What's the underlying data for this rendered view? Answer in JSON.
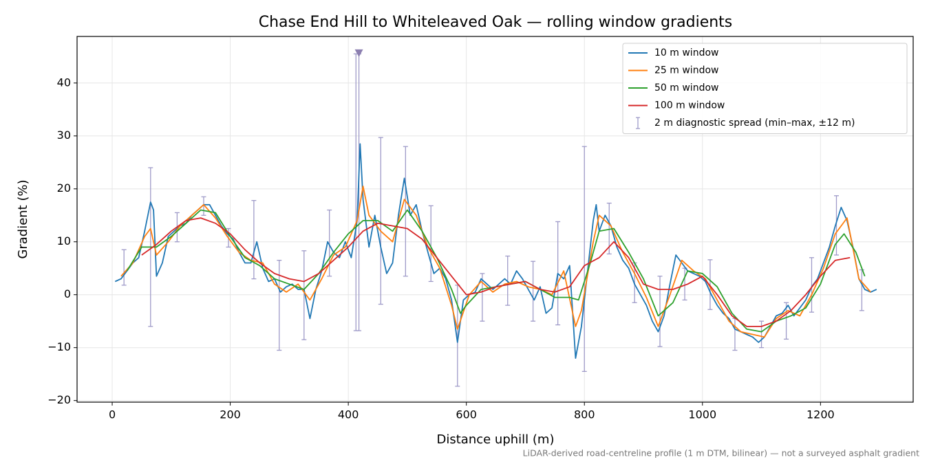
{
  "chart_data": {
    "type": "line",
    "title": "Chase End Hill to Whiteleaved Oak — rolling window gradients",
    "x_label": "Distance uphill (m)",
    "y_label": "Gradient (%)",
    "footnote": "LiDAR-derived road-centreline profile (1 m DTM, bilinear) — not a surveyed asphalt gradient",
    "xlim": [
      -59.5,
      1357
    ],
    "ylim": [
      -20.3,
      48.8
    ],
    "xticks": [
      0,
      200,
      400,
      600,
      800,
      1000,
      1200
    ],
    "yticks": [
      {
        "value": -20,
        "label": "−20"
      },
      {
        "value": -10,
        "label": "−10"
      },
      0,
      10,
      20,
      30,
      40
    ],
    "grid": true,
    "legend": "upper right",
    "series": [
      {
        "name": "10 m window",
        "color": "#1f77b4",
        "x": [
          5,
          15,
          25,
          35,
          45,
          55,
          65,
          70,
          75,
          85,
          95,
          105,
          115,
          125,
          135,
          145,
          155,
          165,
          175,
          185,
          195,
          205,
          215,
          225,
          235,
          245,
          255,
          265,
          275,
          285,
          295,
          305,
          315,
          325,
          335,
          345,
          355,
          365,
          375,
          385,
          395,
          405,
          415,
          420,
          425,
          435,
          445,
          455,
          465,
          475,
          485,
          495,
          505,
          515,
          525,
          535,
          545,
          555,
          565,
          575,
          585,
          595,
          605,
          615,
          625,
          635,
          645,
          655,
          665,
          675,
          685,
          695,
          705,
          715,
          725,
          735,
          745,
          755,
          765,
          775,
          785,
          795,
          805,
          815,
          820,
          825,
          835,
          845,
          855,
          865,
          875,
          885,
          895,
          905,
          915,
          925,
          935,
          945,
          955,
          965,
          975,
          985,
          995,
          1005,
          1015,
          1025,
          1035,
          1045,
          1055,
          1065,
          1075,
          1085,
          1095,
          1105,
          1115,
          1125,
          1135,
          1145,
          1155,
          1165,
          1175,
          1185,
          1195,
          1205,
          1215,
          1225,
          1235,
          1245,
          1255,
          1265,
          1275,
          1285,
          1295
        ],
        "values": [
          2.5,
          3,
          4.5,
          6,
          7,
          12,
          17.5,
          16,
          3.5,
          6,
          11,
          12,
          13,
          13.5,
          15,
          16,
          17,
          17,
          15,
          13,
          11.5,
          10.5,
          8,
          6,
          6,
          10,
          5,
          2.5,
          3,
          0.5,
          1.5,
          2,
          1,
          1,
          -4.5,
          1,
          4.5,
          10,
          8,
          7,
          10,
          7,
          14,
          28.5,
          18,
          9,
          15,
          9,
          4,
          6,
          15,
          22,
          15,
          17,
          12,
          8,
          4,
          5,
          3,
          -1,
          -9,
          -1,
          0,
          0.5,
          3,
          2,
          1,
          2,
          3,
          2,
          4.5,
          3,
          1,
          -1,
          1.5,
          -3.5,
          -2.5,
          4,
          3,
          5.5,
          -12,
          -6,
          4,
          14,
          17,
          12,
          15,
          13,
          9,
          6.5,
          5,
          2,
          0,
          -2,
          -5,
          -7,
          -4,
          2,
          7.5,
          6,
          4.5,
          4,
          3.5,
          2.5,
          0,
          -2,
          -3.5,
          -4.5,
          -6.5,
          -7,
          -7.5,
          -8,
          -9,
          -8,
          -6,
          -4,
          -3.5,
          -2,
          -4,
          -2.5,
          -1,
          1.5,
          3,
          6,
          9,
          13,
          16.5,
          14,
          9,
          3,
          1,
          0.5,
          1
        ]
      },
      {
        "name": "25 m window",
        "color": "#ff7f0e",
        "x": [
          15,
          35,
          55,
          65,
          75,
          95,
          115,
          135,
          155,
          175,
          195,
          215,
          235,
          255,
          275,
          295,
          315,
          335,
          355,
          375,
          395,
          415,
          425,
          435,
          455,
          475,
          495,
          515,
          535,
          555,
          575,
          585,
          605,
          625,
          645,
          665,
          685,
          705,
          725,
          745,
          765,
          785,
          795,
          815,
          825,
          845,
          865,
          885,
          905,
          925,
          945,
          965,
          985,
          1005,
          1025,
          1045,
          1065,
          1085,
          1105,
          1125,
          1145,
          1165,
          1185,
          1205,
          1225,
          1245,
          1265,
          1285
        ],
        "values": [
          3.5,
          6,
          11,
          12.5,
          7.5,
          10,
          13,
          15,
          17,
          14.5,
          11,
          8,
          6.5,
          6,
          2,
          0.5,
          2,
          -1,
          3,
          7.5,
          9,
          14,
          20.5,
          15,
          12,
          10,
          18,
          15,
          9,
          5,
          -2,
          -6.5,
          0,
          2.5,
          0.5,
          2,
          2.5,
          1.5,
          1,
          0,
          4.5,
          -6,
          -3,
          10,
          15,
          13,
          8,
          4,
          -0.5,
          -6,
          0,
          6.5,
          4.5,
          3,
          -1,
          -5,
          -7,
          -7.5,
          -8,
          -4.5,
          -3,
          -4,
          0,
          5,
          11.5,
          14.5,
          3,
          0.5
        ]
      },
      {
        "name": "50 m window",
        "color": "#2ca02c",
        "x": [
          25,
          50,
          75,
          100,
          125,
          150,
          175,
          200,
          225,
          250,
          275,
          300,
          325,
          350,
          375,
          400,
          425,
          450,
          475,
          500,
          525,
          550,
          575,
          590,
          600,
          625,
          650,
          675,
          700,
          725,
          750,
          775,
          790,
          810,
          825,
          850,
          875,
          900,
          925,
          950,
          975,
          1000,
          1025,
          1050,
          1075,
          1100,
          1125,
          1150,
          1175,
          1200,
          1225,
          1240,
          1260,
          1275
        ],
        "values": [
          4.5,
          9,
          9,
          11,
          13.5,
          16,
          15.5,
          11,
          7,
          5.5,
          3,
          2,
          1,
          4,
          8,
          11.5,
          14,
          14,
          12,
          16,
          12,
          7,
          1,
          -3.5,
          -2,
          1,
          1.5,
          2,
          2.5,
          1,
          -0.5,
          -0.5,
          -1,
          6,
          12,
          12.5,
          8,
          3,
          -4,
          -1.5,
          4.5,
          4,
          1.5,
          -3.5,
          -6.5,
          -7,
          -5,
          -4,
          -2.5,
          2,
          9.5,
          11.5,
          8,
          3.5
        ]
      },
      {
        "name": "100 m window",
        "color": "#d62728",
        "x": [
          50,
          75,
          100,
          125,
          150,
          175,
          200,
          225,
          250,
          275,
          300,
          325,
          350,
          375,
          400,
          425,
          450,
          475,
          500,
          525,
          550,
          575,
          600,
          625,
          650,
          675,
          700,
          725,
          750,
          775,
          800,
          825,
          850,
          875,
          900,
          925,
          950,
          975,
          1000,
          1025,
          1050,
          1075,
          1100,
          1125,
          1150,
          1175,
          1200,
          1225,
          1250
        ],
        "values": [
          7.5,
          9.5,
          12,
          14,
          14.5,
          13.5,
          11.5,
          8.5,
          6,
          4,
          3,
          2.5,
          4,
          6.5,
          9,
          12,
          13.5,
          13,
          12.5,
          10.5,
          7,
          3.5,
          0,
          0.5,
          1.5,
          2,
          2.5,
          1,
          0.5,
          1.5,
          5.5,
          7,
          10,
          7,
          2,
          1,
          1,
          2,
          3.5,
          0,
          -4,
          -6,
          -6,
          -5,
          -3,
          0,
          3.5,
          6.5,
          7
        ]
      }
    ],
    "errorbars": {
      "name": "2 m diagnostic spread (min–max, ±12 m)",
      "color": "#9e9ac8",
      "x": [
        20,
        65,
        110,
        155,
        197,
        240,
        283,
        325,
        368,
        413,
        418,
        455,
        497,
        540,
        585,
        627,
        670,
        713,
        755,
        800,
        842,
        885,
        928,
        970,
        1013,
        1055,
        1100,
        1142,
        1185,
        1227,
        1270
      ],
      "low": [
        1.8,
        -6,
        10,
        15,
        9,
        3,
        -10.5,
        -8.5,
        3.5,
        -6.8,
        -6.8,
        -1.8,
        3.5,
        2.5,
        -17.3,
        -5,
        -2,
        -5,
        -5.7,
        -14.5,
        7.7,
        -1.5,
        -9.8,
        -1,
        -2.8,
        -10.5,
        -10,
        -8.4,
        -3.3,
        7.5,
        -3
      ],
      "high": [
        8.5,
        24,
        15.5,
        18.5,
        12.5,
        17.8,
        6.5,
        8.3,
        16,
        45.5,
        45.5,
        29.7,
        28,
        16.8,
        1.8,
        4,
        7.3,
        6.3,
        13.8,
        28,
        17.3,
        6,
        3.5,
        5,
        6.6,
        -4.5,
        -5,
        -1.5,
        7,
        18.7,
        4.7
      ],
      "clip_markers": [
        {
          "x": 418,
          "y": 45.7
        }
      ]
    }
  }
}
